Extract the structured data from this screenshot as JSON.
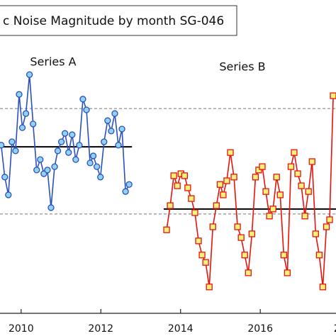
{
  "chart_data": {
    "type": "line",
    "title": "c Noise Magnitude by month SG-046",
    "xlim": [
      2009.47,
      2017.9
    ],
    "xticks": [
      2010,
      2012,
      2014,
      2016,
      {
        "value": 2018,
        "label": "20"
      }
    ],
    "ylim": [
      6.75,
      100
    ],
    "reference_lines": [
      67.7,
      36.3
    ],
    "series": [
      {
        "name": "Series A",
        "color": "#2b4fc0",
        "marker_color": "#8fd3ee",
        "marker": "circle",
        "mean": 56.3,
        "x": [
          2009.5,
          2009.59,
          2009.68,
          2009.77,
          2009.86,
          2009.95,
          2010.03,
          2010.12,
          2010.21,
          2010.3,
          2010.39,
          2010.48,
          2010.57,
          2010.66,
          2010.75,
          2010.84,
          2010.92,
          2011.01,
          2011.1,
          2011.19,
          2011.28,
          2011.37,
          2011.46,
          2011.55,
          2011.64,
          2011.73,
          2011.81,
          2011.9,
          2011.99,
          2012.08,
          2012.17,
          2012.26,
          2012.35,
          2012.44,
          2012.53,
          2012.62,
          2012.71
        ],
        "values": [
          56.8,
          47.3,
          42.0,
          57.8,
          55.1,
          71.9,
          62.0,
          66.2,
          77.8,
          63.1,
          49.4,
          52.5,
          48.3,
          49.4,
          38.2,
          50.4,
          55.1,
          57.8,
          60.3,
          54.6,
          59.9,
          52.5,
          56.8,
          70.5,
          67.3,
          51.5,
          53.6,
          50.4,
          47.3,
          57.8,
          64.1,
          61.0,
          66.2,
          56.8,
          61.6,
          43.0,
          45.1
        ]
      },
      {
        "name": "Series B",
        "color": "#e8120c",
        "marker_color": "#f7f07a",
        "marker": "square",
        "mean": 37.8,
        "x": [
          2013.65,
          2013.74,
          2013.83,
          2013.92,
          2014.01,
          2014.1,
          2014.18,
          2014.27,
          2014.36,
          2014.45,
          2014.54,
          2014.63,
          2014.72,
          2014.81,
          2014.9,
          2014.99,
          2015.07,
          2015.16,
          2015.25,
          2015.34,
          2015.43,
          2015.52,
          2015.61,
          2015.7,
          2015.79,
          2015.88,
          2015.96,
          2016.05,
          2016.14,
          2016.23,
          2016.32,
          2016.41,
          2016.5,
          2016.59,
          2016.68,
          2016.77,
          2016.85,
          2016.94,
          2017.03,
          2017.12,
          2017.21,
          2017.3,
          2017.39,
          2017.48,
          2017.57,
          2017.66,
          2017.74,
          2017.83
        ],
        "values": [
          31.6,
          38.8,
          47.7,
          44.7,
          48.3,
          47.7,
          44.1,
          40.9,
          36.7,
          28.3,
          24.1,
          21.9,
          14.6,
          32.5,
          38.8,
          45.1,
          42.0,
          46.2,
          54.6,
          47.3,
          32.5,
          29.3,
          24.1,
          18.8,
          30.4,
          47.3,
          49.4,
          50.4,
          43.0,
          35.7,
          37.8,
          47.3,
          42.0,
          24.1,
          18.8,
          50.4,
          54.6,
          48.3,
          44.7,
          35.7,
          43.0,
          51.9,
          30.4,
          24.1,
          14.6,
          32.5,
          34.6,
          71.5
        ]
      }
    ]
  }
}
